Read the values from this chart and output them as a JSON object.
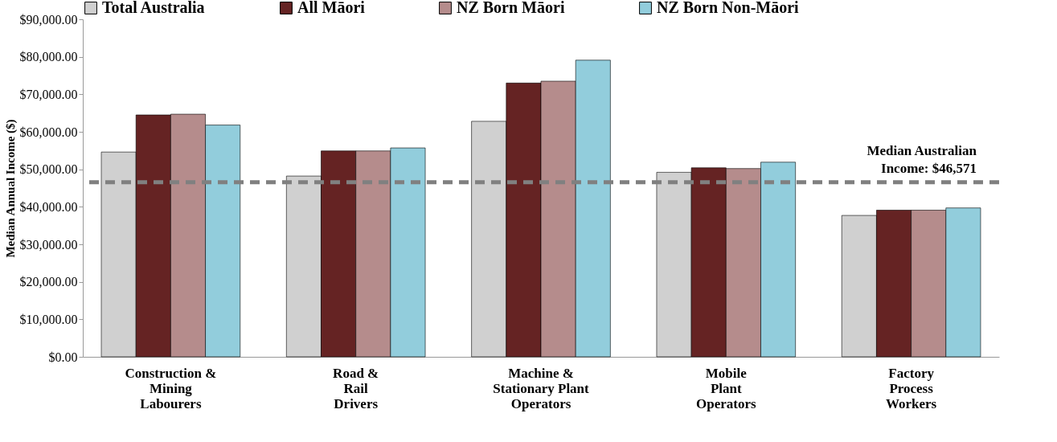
{
  "chart_data": {
    "type": "bar",
    "ylabel": "Median Annual Income ($)",
    "categories": [
      "Construction &\nMining\nLabourers",
      "Road &\nRail\nDrivers",
      "Machine &\nStationary Plant\nOperators",
      "Mobile\nPlant\nOperators",
      "Factory\nProcess\nWorkers"
    ],
    "series": [
      {
        "name": "Total Australia",
        "color": "#d0d0d0",
        "values": [
          54600,
          48200,
          62800,
          49200,
          37700
        ]
      },
      {
        "name": "All Māori",
        "color": "#652323",
        "values": [
          64500,
          54900,
          73000,
          50400,
          39100
        ]
      },
      {
        "name": "NZ Born Māori",
        "color": "#b58c8c",
        "values": [
          64700,
          54900,
          73500,
          50200,
          39100
        ]
      },
      {
        "name": "NZ Born Non-Māori",
        "color": "#92cddc",
        "values": [
          61800,
          55700,
          79100,
          51900,
          39700
        ]
      }
    ],
    "ylim": [
      0,
      90000
    ],
    "yticks": [
      {
        "value": 0,
        "label": "$0.00"
      },
      {
        "value": 10000,
        "label": "$10,000.00"
      },
      {
        "value": 20000,
        "label": "$20,000.00"
      },
      {
        "value": 30000,
        "label": "$30,000.00"
      },
      {
        "value": 40000,
        "label": "$40,000.00"
      },
      {
        "value": 50000,
        "label": "$50,000.00"
      },
      {
        "value": 60000,
        "label": "$60,000.00"
      },
      {
        "value": 70000,
        "label": "$70,000.00"
      },
      {
        "value": 80000,
        "label": "$80,000.00"
      },
      {
        "value": 90000,
        "label": "$90,000.00"
      }
    ],
    "ref_lines": [
      {
        "axis": "y",
        "value": 46571,
        "label": "Median Australian\nIncome: $46,571",
        "color": "#808080",
        "line_style": "dashed"
      }
    ],
    "legend": "top",
    "grid": false
  }
}
